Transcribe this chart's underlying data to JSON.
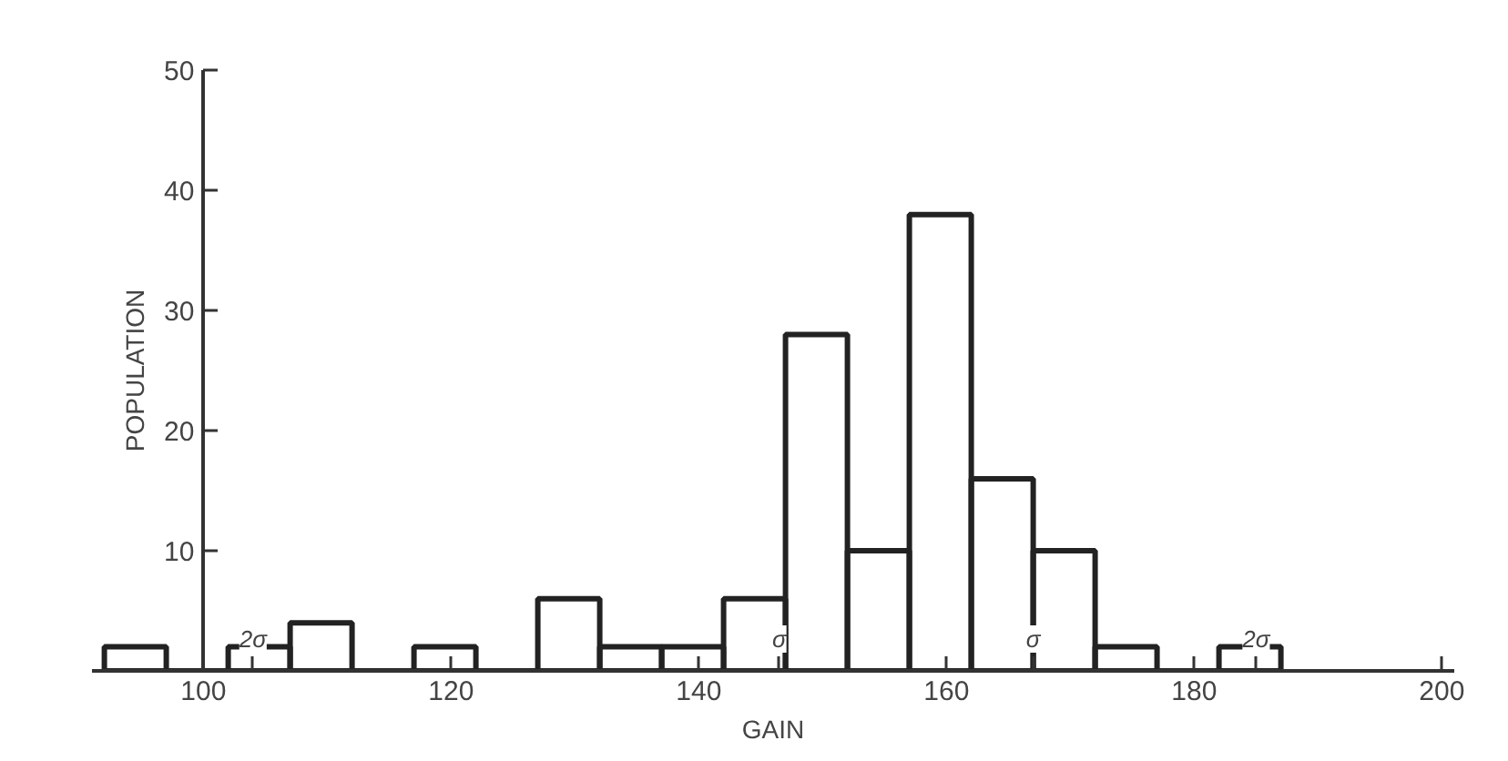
{
  "chart_data": {
    "type": "histogram",
    "xlabel": "GAIN",
    "ylabel": "POPULATION",
    "bins": [
      92,
      97,
      102,
      107,
      112,
      117,
      122,
      127,
      132,
      137,
      142,
      147,
      152,
      157,
      162,
      167,
      172,
      177,
      182,
      187
    ],
    "values": [
      2,
      0,
      2,
      4,
      0,
      2,
      0,
      6,
      2,
      2,
      6,
      28,
      10,
      38,
      16,
      10,
      2,
      0,
      2
    ],
    "color": "#222222",
    "xlim": [
      91,
      201
    ],
    "ylim": [
      0,
      50
    ],
    "xticks": [
      100,
      {
        "value": 104,
        "label": null
      },
      120,
      140,
      {
        "value": 146.5,
        "label": null
      },
      160,
      {
        "value": 167,
        "label": null
      },
      180,
      {
        "value": 185,
        "label": null
      },
      200
    ],
    "yticks": [
      10,
      20,
      30,
      40,
      50
    ],
    "grid": false,
    "annotations": [
      "2σ",
      "σ",
      "σ",
      "2σ"
    ]
  }
}
